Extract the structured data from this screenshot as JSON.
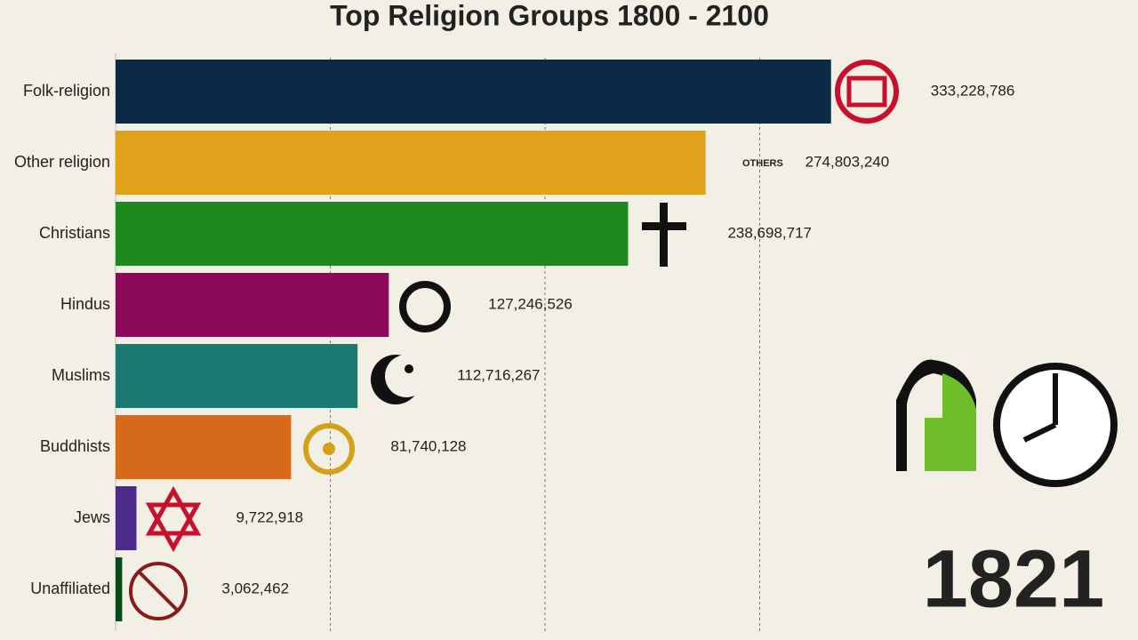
{
  "chart_data": {
    "type": "bar",
    "orientation": "horizontal",
    "title": "Top Religion Groups 1800 - 2100",
    "year": "1821",
    "others_label": "OTHERS",
    "categories": [
      "Folk-religion",
      "Other religion",
      "Christians",
      "Hindus",
      "Muslims",
      "Buddhists",
      "Jews",
      "Unaffiliated"
    ],
    "values": [
      333228786,
      274803240,
      238698717,
      127246526,
      112716267,
      81740128,
      9722918,
      3062462
    ],
    "value_labels": [
      "333,228,786",
      "274,803,240",
      "238,698,717",
      "127,246,526",
      "112,716,267",
      "81,740,128",
      "9,722,918",
      "3,062,462"
    ],
    "colors": [
      "#0b2a45",
      "#e0a21a",
      "#1e8a1e",
      "#8b0a5a",
      "#1a7a72",
      "#d66a1a",
      "#4b2a8a",
      "#0a4a1a"
    ],
    "xlim": [
      0,
      400000000
    ],
    "xticks": [
      100000000,
      200000000,
      300000000
    ],
    "grid": true
  }
}
